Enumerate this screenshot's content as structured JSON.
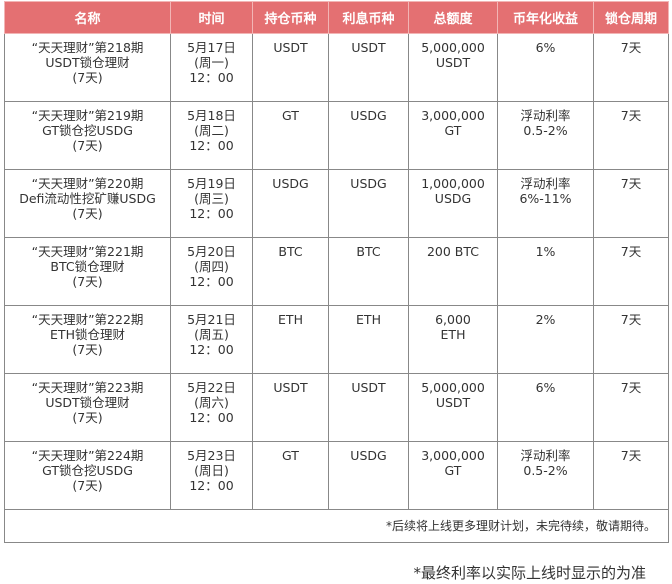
{
  "table": {
    "headers": [
      "名称",
      "时间",
      "持仓币种",
      "利息币种",
      "总额度",
      "币年化收益",
      "锁仓周期"
    ],
    "rows": [
      [
        "“天天理财”第218期\nUSDT锁仓理财\n(7天)",
        "5月17日\n(周一)\n12：00",
        "USDT",
        "USDT",
        "5,000,000\nUSDT",
        "6%",
        "7天"
      ],
      [
        "“天天理财”第219期\nGT锁仓挖USDG\n(7天)",
        "5月18日\n(周二)\n12：00",
        "GT",
        "USDG",
        "3,000,000\nGT",
        "浮动利率\n0.5-2%",
        "7天"
      ],
      [
        "“天天理财”第220期\nDefi流动性挖矿赚USDG\n(7天)",
        "5月19日\n(周三)\n12：00",
        "USDG",
        "USDG",
        "1,000,000\nUSDG",
        "浮动利率\n6%-11%",
        "7天"
      ],
      [
        "“天天理财”第221期\nBTC锁仓理财\n(7天)",
        "5月20日\n(周四)\n12：00",
        "BTC",
        "BTC",
        "200 BTC",
        "1%",
        "7天"
      ],
      [
        "“天天理财”第222期\nETH锁仓理财\n(7天)",
        "5月21日\n(周五)\n12：00",
        "ETH",
        "ETH",
        "6,000\nETH",
        "2%",
        "7天"
      ],
      [
        "“天天理财”第223期\nUSDT锁仓理财\n(7天)",
        "5月22日\n(周六)\n12：00",
        "USDT",
        "USDT",
        "5,000,000\nUSDT",
        "6%",
        "7天"
      ],
      [
        "“天天理财”第224期\nGT锁仓挖USDG\n(7天)",
        "5月23日\n(周日)\n12：00",
        "GT",
        "USDG",
        "3,000,000\nGT",
        "浮动利率\n0.5-2%",
        "7天"
      ]
    ],
    "footer": "*后续将上线更多理财计划，未完待续，敬请期待。"
  },
  "note": "*最终利率以实际上线时显示的为准"
}
